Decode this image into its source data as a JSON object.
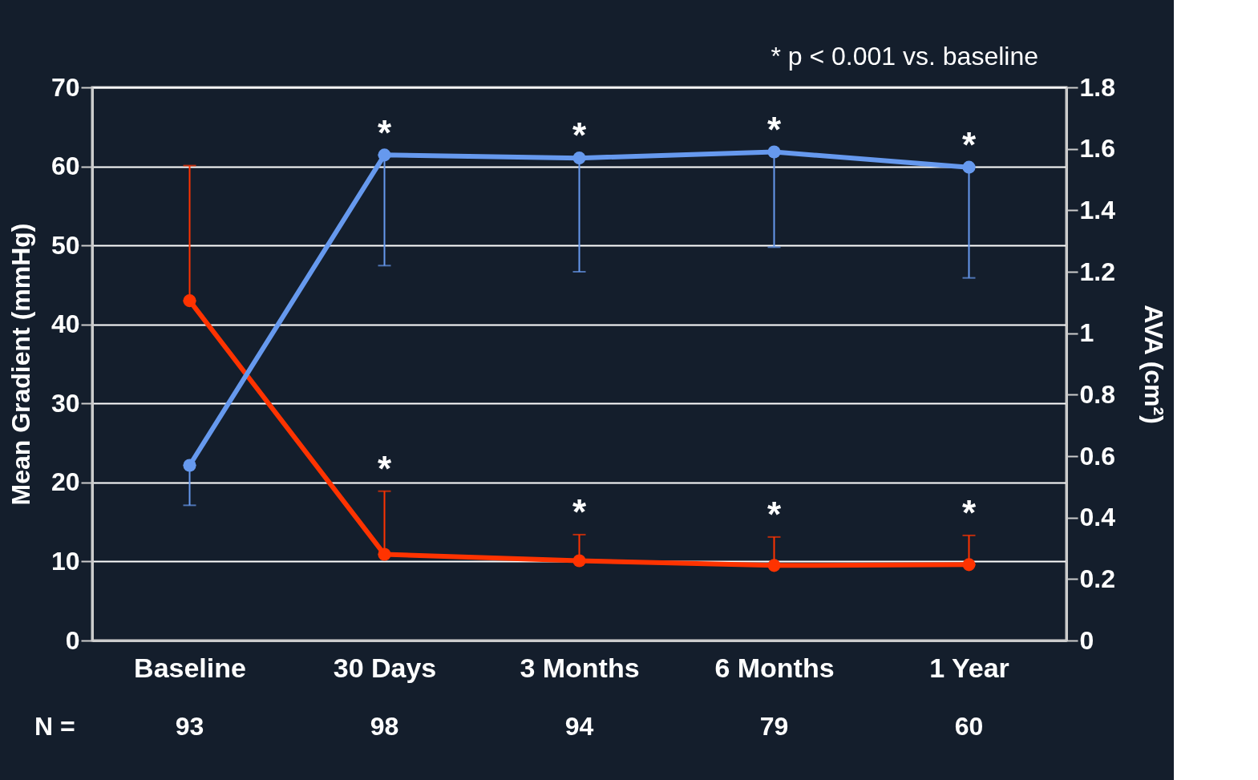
{
  "chart_data": {
    "type": "line",
    "categories": [
      "Baseline",
      "30 Days",
      "3 Months",
      "6 Months",
      "1 Year"
    ],
    "ylabel": "Mean Gradient (mmHg)",
    "y2label": "AVA (cm²)",
    "series": [
      {
        "color": "#ff3300",
        "values": [
          43.0,
          10.9,
          10.1,
          9.5,
          9.6
        ],
        "errors": [
          [
            43.0,
            60.1
          ],
          [
            10.9,
            18.9
          ],
          [
            10.1,
            13.4
          ],
          [
            9.5,
            13.1
          ],
          [
            9.6,
            13.3
          ]
        ]
      },
      {
        "color": "#6699ee",
        "axis": "y2",
        "values": [
          0.57,
          1.58,
          1.57,
          1.59,
          1.54
        ],
        "errors": [
          [
            0.44,
            0.57
          ],
          [
            1.22,
            1.58
          ],
          [
            1.2,
            1.57
          ],
          [
            1.28,
            1.59
          ],
          [
            1.18,
            1.54
          ]
        ]
      }
    ],
    "ylim": [
      0,
      70
    ],
    "yticks": [
      0,
      10,
      20,
      30,
      40,
      50,
      60,
      70
    ],
    "y2lim": [
      0,
      1.8
    ],
    "y2ticks": [
      0,
      0.2,
      0.4,
      0.6,
      0.8,
      1,
      1.2,
      1.4,
      1.6,
      1.8
    ],
    "grid": "y",
    "marker": "circle",
    "line_style": "solid",
    "annotations": [
      "* p < 0.001 vs. baseline",
      "N =",
      "93",
      "98",
      "94",
      "79",
      "60",
      {
        "text": "*",
        "x": "30 Days",
        "y": 61.4
      },
      {
        "text": "*",
        "x": "3 Months",
        "y": 61.1
      },
      {
        "text": "*",
        "x": "6 Months",
        "y": 61.8
      },
      {
        "text": "*",
        "x": "1 Year",
        "y": 59.9
      },
      {
        "text": "*",
        "x": "30 Days",
        "y": 18.9
      },
      {
        "text": "*",
        "x": "3 Months",
        "y": 13.4
      },
      {
        "text": "*",
        "x": "6 Months",
        "y": 13.1
      },
      {
        "text": "*",
        "x": "1 Year",
        "y": 13.3
      }
    ]
  }
}
